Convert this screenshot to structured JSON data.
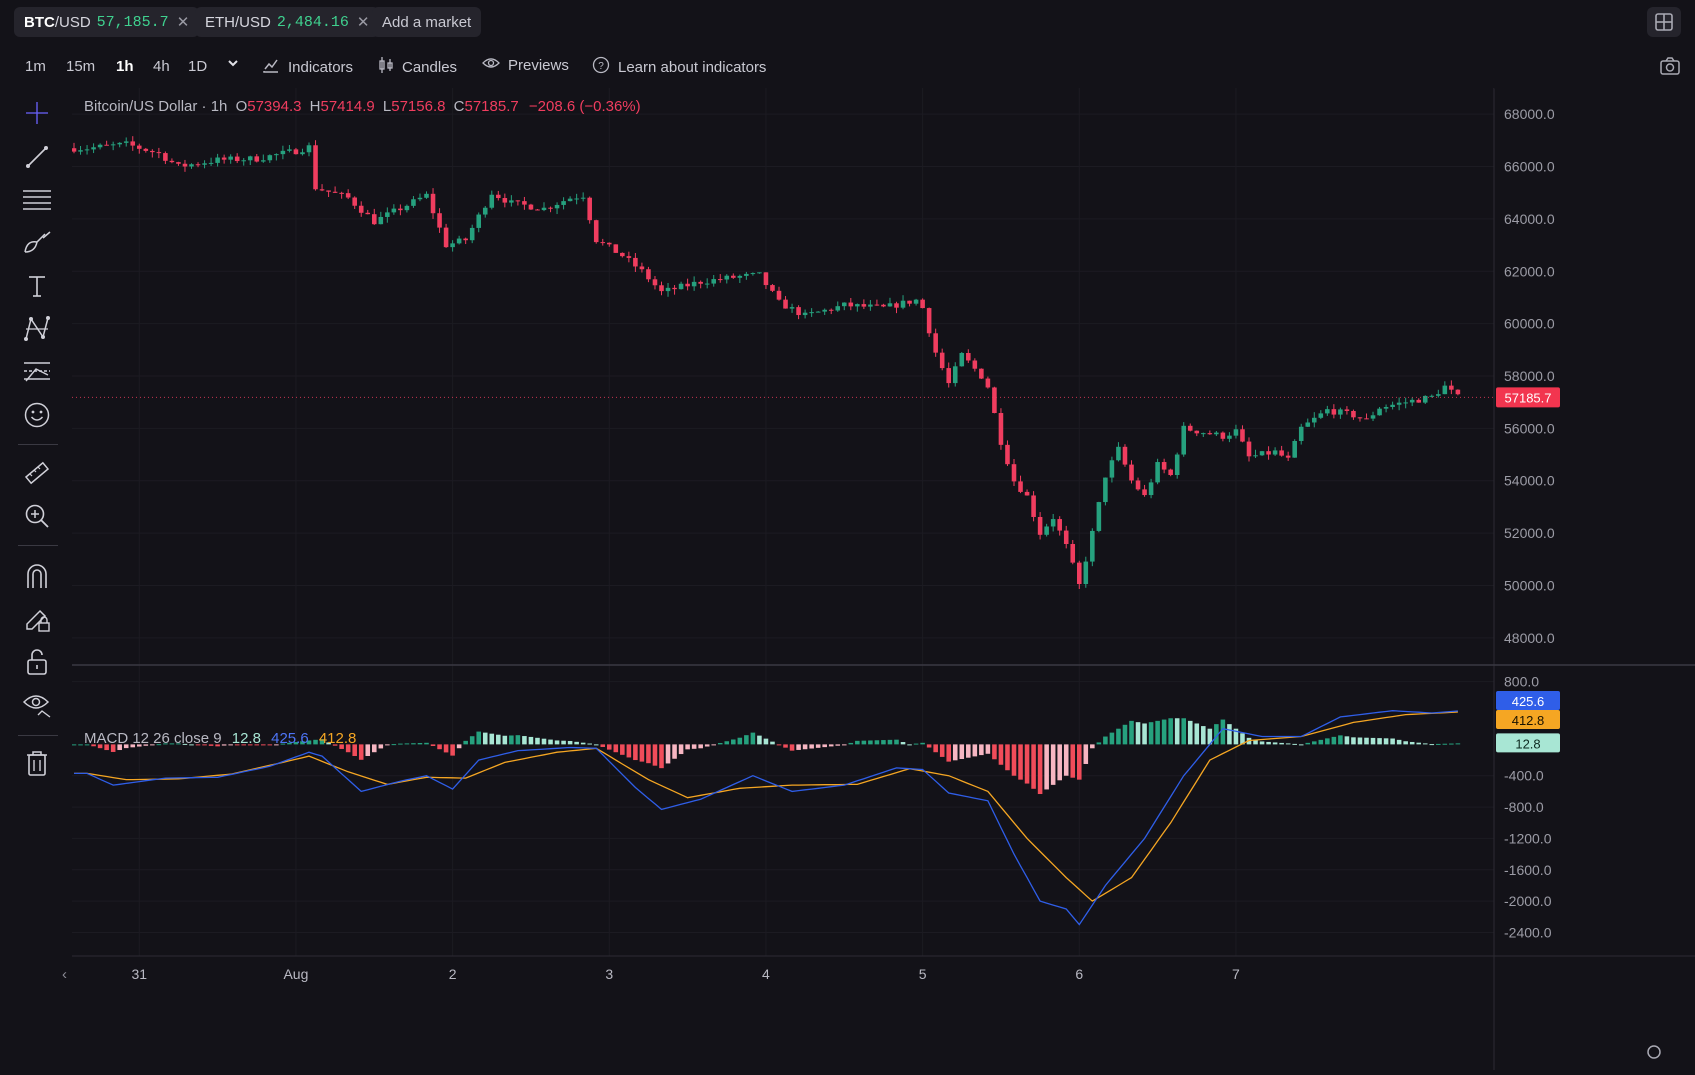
{
  "markets": [
    {
      "base": "BTC",
      "quote": "/USD",
      "price": "57,185.7"
    },
    {
      "base": "ETH",
      "quote": "/USD",
      "price": "2,484.16"
    }
  ],
  "add_market_label": "Add a market",
  "timeframes": [
    "1m",
    "15m",
    "1h",
    "4h",
    "1D"
  ],
  "active_timeframe": "1h",
  "toolbar": {
    "indicators_label": "Indicators",
    "candles_label": "Candles",
    "previews_label": "Previews",
    "learn_label": "Learn about indicators"
  },
  "left_tools": [
    "crosshair-icon",
    "trend-line-icon",
    "horizontal-lines-icon",
    "brush-icon",
    "text-icon",
    "pattern-icon",
    "fib-icon",
    "emoji-icon",
    "ruler-icon",
    "zoom-in-icon",
    "magnet-icon",
    "lock-drawing-icon",
    "unlock-icon",
    "eye-icon",
    "trash-icon"
  ],
  "legend": {
    "symbol": "Bitcoin/US Dollar · 1h",
    "open_label": "O",
    "open": "57394.3",
    "high_label": "H",
    "high": "57414.9",
    "low_label": "L",
    "low": "57156.8",
    "close_label": "C",
    "close": "57185.7",
    "change": "−208.6 (−0.36%)"
  },
  "macd_legend": {
    "name": "MACD 12 26 close 9",
    "hist": "12.8",
    "macd": "425.6",
    "signal": "412.8"
  },
  "colors": {
    "up": "#26a17e",
    "down": "#f03d5f",
    "macd": "#2f5ee8",
    "signal": "#f5a623",
    "hist_up_light": "#a8e6d4",
    "hist_down_light": "#f7b6c2",
    "hist_down": "#f04c5a",
    "background": "#131218"
  },
  "chart_data": [
    {
      "type": "candlestick",
      "title": "Bitcoin/US Dollar · 1h",
      "ylim": [
        47000,
        69000
      ],
      "y_ticks": [
        "68000.0",
        "66000.0",
        "64000.0",
        "62000.0",
        "60000.0",
        "58000.0",
        "56000.0",
        "54000.0",
        "52000.0",
        "50000.0",
        "48000.0"
      ],
      "x_ticks": [
        "31",
        "Aug",
        "2",
        "3",
        "4",
        "5",
        "6",
        "7"
      ],
      "last_price_label": "57185.7",
      "close_path": [
        [
          "Jul 30 16:00",
          66700
        ],
        [
          "Jul 30 22:00",
          66850
        ],
        [
          "Jul 31 03:00",
          66500
        ],
        [
          "Jul 31 06:00",
          66000
        ],
        [
          "Jul 31 12:00",
          66250
        ],
        [
          "Jul 31 18:00",
          66300
        ],
        [
          "Aug 1 00:00",
          66600
        ],
        [
          "Aug 1 02:00",
          66750
        ],
        [
          "Aug 1 03:00",
          65200
        ],
        [
          "Aug 1 08:00",
          64800
        ],
        [
          "Aug 1 12:00",
          63900
        ],
        [
          "Aug 1 16:00",
          64400
        ],
        [
          "Aug 1 20:00",
          64900
        ],
        [
          "Aug 1 23:00",
          63000
        ],
        [
          "Aug 2 02:00",
          63200
        ],
        [
          "Aug 2 06:00",
          65000
        ],
        [
          "Aug 2 09:00",
          64600
        ],
        [
          "Aug 2 14:00",
          64400
        ],
        [
          "Aug 2 18:00",
          64800
        ],
        [
          "Aug 2 20:00",
          64900
        ],
        [
          "Aug 2 22:00",
          63200
        ],
        [
          "Aug 3 02:00",
          62600
        ],
        [
          "Aug 3 05:00",
          62000
        ],
        [
          "Aug 3 08:00",
          61200
        ],
        [
          "Aug 3 14:00",
          61600
        ],
        [
          "Aug 3 20:00",
          61800
        ],
        [
          "Aug 3 23:00",
          61850
        ],
        [
          "Aug 4 02:00",
          60800
        ],
        [
          "Aug 4 06:00",
          60300
        ],
        [
          "Aug 4 12:00",
          60700
        ],
        [
          "Aug 4 18:00",
          60600
        ],
        [
          "Aug 4 23:00",
          60900
        ],
        [
          "Aug 5 00:00",
          60600
        ],
        [
          "Aug 5 02:00",
          58900
        ],
        [
          "Aug 5 04:00",
          57700
        ],
        [
          "Aug 5 06:00",
          58800
        ],
        [
          "Aug 5 09:00",
          58000
        ],
        [
          "Aug 5 10:00",
          57600
        ],
        [
          "Aug 5 12:00",
          55500
        ],
        [
          "Aug 5 14:00",
          54000
        ],
        [
          "Aug 5 16:00",
          53400
        ],
        [
          "Aug 5 18:00",
          52000
        ],
        [
          "Aug 5 20:00",
          52600
        ],
        [
          "Aug 5 22:00",
          51500
        ],
        [
          "Aug 6 00:00",
          50000
        ],
        [
          "Aug 6 02:00",
          52000
        ],
        [
          "Aug 6 04:00",
          54200
        ],
        [
          "Aug 6 06:00",
          55200
        ],
        [
          "Aug 6 08:00",
          54000
        ],
        [
          "Aug 6 10:00",
          53400
        ],
        [
          "Aug 6 12:00",
          54600
        ],
        [
          "Aug 6 14:00",
          54200
        ],
        [
          "Aug 6 16:00",
          56000
        ],
        [
          "Aug 6 18:00",
          55900
        ],
        [
          "Aug 6 22:00",
          55700
        ],
        [
          "Aug 7 00:00",
          55900
        ],
        [
          "Aug 7 02:00",
          54900
        ],
        [
          "Aug 7 06:00",
          55100
        ],
        [
          "Aug 7 08:00",
          54800
        ],
        [
          "Aug 7 10:00",
          56000
        ],
        [
          "Aug 7 14:00",
          56700
        ],
        [
          "Aug 7 18:00",
          56500
        ],
        [
          "Aug 7 20:00",
          56300
        ],
        [
          "Aug 7 22:00",
          56800
        ],
        [
          "Aug 8 02:00",
          57000
        ],
        [
          "Aug 8 06:00",
          57200
        ],
        [
          "Aug 8 08:00",
          57600
        ],
        [
          "Aug 8 10:00",
          57185.7
        ]
      ]
    },
    {
      "type": "macd",
      "title": "MACD 12 26 close 9",
      "ylim": [
        -2700,
        1000
      ],
      "y_ticks": [
        "800.0",
        "-400.0",
        "-800.0",
        "-1200.0",
        "-1600.0",
        "-2000.0",
        "-2400.0"
      ],
      "series": [
        {
          "name": "MACD",
          "values_path": [
            [
              "Jul 30 16:00",
              -370
            ],
            [
              "Jul 30 20:00",
              -520
            ],
            [
              "Jul 31 04:00",
              -430
            ],
            [
              "Jul 31 12:00",
              -420
            ],
            [
              "Jul 31 20:00",
              -280
            ],
            [
              "Aug 1 02:00",
              -100
            ],
            [
              "Aug 1 04:00",
              -150
            ],
            [
              "Aug 1 10:00",
              -600
            ],
            [
              "Aug 1 16:00",
              -470
            ],
            [
              "Aug 1 20:00",
              -400
            ],
            [
              "Aug 2 00:00",
              -570
            ],
            [
              "Aug 2 04:00",
              -200
            ],
            [
              "Aug 2 10:00",
              -80
            ],
            [
              "Aug 2 18:00",
              -40
            ],
            [
              "Aug 2 22:00",
              -50
            ],
            [
              "Aug 3 04:00",
              -550
            ],
            [
              "Aug 3 08:00",
              -830
            ],
            [
              "Aug 3 14:00",
              -700
            ],
            [
              "Aug 3 22:00",
              -400
            ],
            [
              "Aug 4 04:00",
              -600
            ],
            [
              "Aug 4 12:00",
              -520
            ],
            [
              "Aug 4 20:00",
              -300
            ],
            [
              "Aug 5 00:00",
              -320
            ],
            [
              "Aug 5 04:00",
              -620
            ],
            [
              "Aug 5 10:00",
              -720
            ],
            [
              "Aug 5 14:00",
              -1400
            ],
            [
              "Aug 5 18:00",
              -2000
            ],
            [
              "Aug 5 22:00",
              -2100
            ],
            [
              "Aug 6 00:00",
              -2300
            ],
            [
              "Aug 6 04:00",
              -1800
            ],
            [
              "Aug 6 10:00",
              -1200
            ],
            [
              "Aug 6 16:00",
              -400
            ],
            [
              "Aug 6 22:00",
              200
            ],
            [
              "Aug 7 04:00",
              100
            ],
            [
              "Aug 7 10:00",
              100
            ],
            [
              "Aug 7 16:00",
              350
            ],
            [
              "Aug 8 00:00",
              430
            ],
            [
              "Aug 8 06:00",
              400
            ],
            [
              "Aug 8 10:00",
              425.6
            ]
          ]
        },
        {
          "name": "Signal",
          "values_path": [
            [
              "Jul 30 16:00",
              -370
            ],
            [
              "Jul 30 22:00",
              -450
            ],
            [
              "Jul 31 06:00",
              -440
            ],
            [
              "Jul 31 14:00",
              -380
            ],
            [
              "Jul 31 22:00",
              -230
            ],
            [
              "Aug 1 02:00",
              -150
            ],
            [
              "Aug 1 08:00",
              -350
            ],
            [
              "Aug 1 14:00",
              -510
            ],
            [
              "Aug 1 20:00",
              -420
            ],
            [
              "Aug 2 02:00",
              -430
            ],
            [
              "Aug 2 08:00",
              -230
            ],
            [
              "Aug 2 16:00",
              -100
            ],
            [
              "Aug 2 22:00",
              -50
            ],
            [
              "Aug 3 06:00",
              -450
            ],
            [
              "Aug 3 12:00",
              -680
            ],
            [
              "Aug 3 20:00",
              -560
            ],
            [
              "Aug 4 04:00",
              -520
            ],
            [
              "Aug 4 14:00",
              -510
            ],
            [
              "Aug 4 22:00",
              -310
            ],
            [
              "Aug 5 04:00",
              -400
            ],
            [
              "Aug 5 10:00",
              -600
            ],
            [
              "Aug 5 16:00",
              -1200
            ],
            [
              "Aug 5 22:00",
              -1700
            ],
            [
              "Aug 6 02:00",
              -2000
            ],
            [
              "Aug 6 08:00",
              -1700
            ],
            [
              "Aug 6 14:00",
              -1000
            ],
            [
              "Aug 6 20:00",
              -200
            ],
            [
              "Aug 7 02:00",
              50
            ],
            [
              "Aug 7 10:00",
              100
            ],
            [
              "Aug 7 18:00",
              280
            ],
            [
              "Aug 8 02:00",
              380
            ],
            [
              "Aug 8 10:00",
              412.8
            ]
          ]
        },
        {
          "name": "Histogram",
          "last": "12.8"
        }
      ],
      "last_labels": {
        "macd": "425.6",
        "signal": "412.8",
        "hist": "12.8"
      }
    }
  ]
}
